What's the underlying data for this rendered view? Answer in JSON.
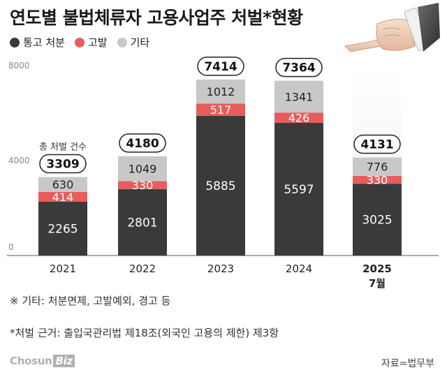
{
  "title": "연도별 불법체류자 고용사업주 처벌*현황",
  "legend": [
    {
      "label": "통고 처분",
      "color": "#3a3a3a"
    },
    {
      "label": "고발",
      "color": "#e85c5c"
    },
    {
      "label": "기타",
      "color": "#c8c8c8"
    }
  ],
  "total_caption": "총 처벌 건수",
  "notes": {
    "etc": "※ 기타: 처분면제, 고발예외, 경고 등",
    "basis": "*처벌 근거: 출입국관리법 제18조(외국인 고용의 제한) 제3항"
  },
  "logo": {
    "main": "Chosun",
    "biz": "Biz"
  },
  "source": "자료=법무부",
  "chart_data": {
    "type": "bar",
    "stacked": true,
    "categories": [
      {
        "line1": "2021",
        "line2": ""
      },
      {
        "line1": "2022",
        "line2": ""
      },
      {
        "line1": "2023",
        "line2": ""
      },
      {
        "line1": "2024",
        "line2": ""
      },
      {
        "line1": "2025",
        "line2": "7월"
      }
    ],
    "series": [
      {
        "name": "통고 처분",
        "color": "#3a3a3a",
        "values": [
          2265,
          2801,
          5885,
          5597,
          3025
        ]
      },
      {
        "name": "고발",
        "color": "#e85c5c",
        "values": [
          414,
          330,
          517,
          426,
          330
        ]
      },
      {
        "name": "기타",
        "color": "#c8c8c8",
        "values": [
          630,
          1049,
          1012,
          1341,
          776
        ]
      }
    ],
    "totals": [
      3309,
      4180,
      7414,
      7364,
      4131
    ],
    "yticks": [
      0,
      4000,
      8000
    ],
    "ylim": [
      0,
      8000
    ],
    "highlight_last": true
  }
}
